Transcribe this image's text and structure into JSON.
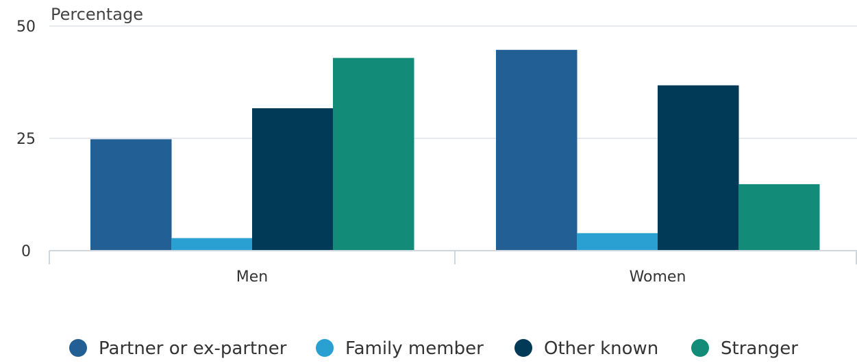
{
  "chart_data": {
    "type": "bar",
    "title": "",
    "ylabel": "Percentage",
    "xlabel": "",
    "categories": [
      "Men",
      "Women"
    ],
    "ylim": [
      0,
      50
    ],
    "yticks": [
      0,
      25,
      50
    ],
    "grid": true,
    "legend_position": "bottom",
    "series": [
      {
        "name": "Partner or ex-partner",
        "color": "#215f94",
        "values": [
          24.8,
          44.7
        ]
      },
      {
        "name": "Family member",
        "color": "#2a9fd2",
        "values": [
          2.8,
          3.9
        ]
      },
      {
        "name": "Other known",
        "color": "#003a57",
        "values": [
          31.7,
          36.8
        ]
      },
      {
        "name": "Stranger",
        "color": "#128b79",
        "values": [
          42.9,
          14.8
        ]
      }
    ]
  },
  "colors": {
    "grid": "#dde3e8",
    "axis": "#cfd8de",
    "text": "#333333"
  }
}
